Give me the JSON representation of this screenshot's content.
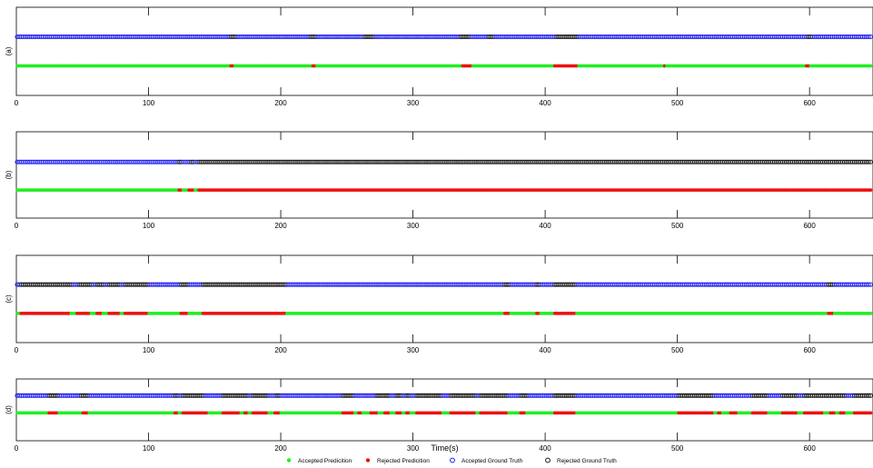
{
  "chart_data": {
    "type": "scatter",
    "xlabel": "Time(s)",
    "xlim": [
      0,
      648
    ],
    "xticks": [
      0,
      100,
      200,
      300,
      400,
      500,
      600
    ],
    "colors": {
      "accepted_prediction": "#22ee22",
      "rejected_prediction": "#ee1111",
      "accepted_ground_truth": "#1a1aee",
      "rejected_ground_truth": "#111111"
    },
    "legend": {
      "placement": "bottom-center",
      "items": [
        {
          "key": "accepted_prediction",
          "label": "Accepted Predicition",
          "marker": "filled-dot"
        },
        {
          "key": "rejected_prediction",
          "label": "Rejected Predicition",
          "marker": "filled-dot"
        },
        {
          "key": "accepted_ground_truth",
          "label": "Accepted Ground Truth",
          "marker": "open-circle"
        },
        {
          "key": "rejected_ground_truth",
          "label": "Rejected Ground Truth",
          "marker": "open-circle"
        }
      ]
    },
    "panels": [
      {
        "label": "(a)",
        "ground_truth_rejected_intervals": [
          [
            162,
            166
          ],
          [
            222,
            227
          ],
          [
            263,
            270
          ],
          [
            336,
            343
          ],
          [
            356,
            362
          ],
          [
            408,
            425
          ],
          [
            598,
            601
          ]
        ],
        "prediction_rejected_intervals": [
          [
            162,
            164
          ],
          [
            223,
            226
          ],
          [
            337,
            344
          ],
          [
            407,
            424
          ],
          [
            489,
            491
          ],
          [
            597,
            600
          ]
        ]
      },
      {
        "label": "(b)",
        "ground_truth_rejected_intervals": [
          [
            122,
            126
          ],
          [
            131,
            134
          ],
          [
            138,
            648
          ]
        ],
        "prediction_rejected_intervals": [
          [
            122,
            125
          ],
          [
            130,
            135
          ],
          [
            138,
            648
          ]
        ]
      },
      {
        "label": "(c)",
        "ground_truth_rejected_intervals": [
          [
            3,
            42
          ],
          [
            47,
            58
          ],
          [
            60,
            66
          ],
          [
            69,
            78
          ],
          [
            82,
            100
          ],
          [
            124,
            130
          ],
          [
            140,
            204
          ],
          [
            369,
            374
          ],
          [
            393,
            396
          ],
          [
            407,
            423
          ],
          [
            613,
            619
          ]
        ],
        "prediction_rejected_intervals": [
          [
            3,
            40
          ],
          [
            45,
            56
          ],
          [
            61,
            65
          ],
          [
            69,
            78
          ],
          [
            82,
            100
          ],
          [
            124,
            130
          ],
          [
            140,
            204
          ],
          [
            369,
            374
          ],
          [
            393,
            396
          ],
          [
            407,
            423
          ],
          [
            613,
            619
          ]
        ]
      },
      {
        "label": "(d)",
        "ground_truth_rejected_intervals": [
          [
            24,
            32
          ],
          [
            48,
            55
          ],
          [
            120,
            123
          ],
          [
            126,
            142
          ],
          [
            155,
            176
          ],
          [
            178,
            190
          ],
          [
            197,
            200
          ],
          [
            246,
            256
          ],
          [
            272,
            282
          ],
          [
            287,
            291
          ],
          [
            294,
            298
          ],
          [
            303,
            322
          ],
          [
            328,
            348
          ],
          [
            350,
            372
          ],
          [
            381,
            387
          ],
          [
            407,
            423
          ],
          [
            501,
            527
          ],
          [
            556,
            568
          ],
          [
            579,
            591
          ],
          [
            596,
            628
          ],
          [
            634,
            648
          ]
        ],
        "prediction_rejected_intervals": [
          [
            24,
            32
          ],
          [
            50,
            55
          ],
          [
            120,
            123
          ],
          [
            126,
            145
          ],
          [
            155,
            170
          ],
          [
            172,
            175
          ],
          [
            178,
            190
          ],
          [
            195,
            200
          ],
          [
            246,
            256
          ],
          [
            259,
            262
          ],
          [
            268,
            274
          ],
          [
            278,
            282
          ],
          [
            287,
            291
          ],
          [
            294,
            298
          ],
          [
            303,
            322
          ],
          [
            328,
            348
          ],
          [
            350,
            372
          ],
          [
            381,
            386
          ],
          [
            407,
            423
          ],
          [
            501,
            527
          ],
          [
            530,
            533
          ],
          [
            540,
            545
          ],
          [
            556,
            568
          ],
          [
            579,
            591
          ],
          [
            596,
            610
          ],
          [
            615,
            620
          ],
          [
            623,
            628
          ],
          [
            634,
            648
          ]
        ]
      }
    ]
  }
}
